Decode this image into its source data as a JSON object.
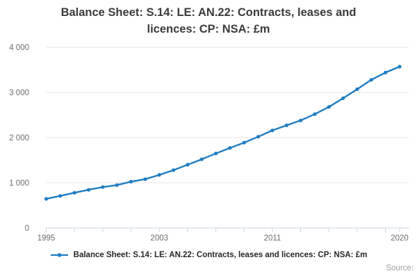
{
  "title": "Balance Sheet: S.14: LE: AN.22: Contracts, leases and licences: CP: NSA: £m",
  "legend": {
    "label": "Balance Sheet: S.14: LE: AN.22: Contracts, leases and licences: CP: NSA: £m",
    "marker_icon": "line-with-dot-marker"
  },
  "source_label": "Source:",
  "colors": {
    "line": "#1d7dc2",
    "grid": "#e6e6e6",
    "axis": "#c8d4e3",
    "axis_text": "#6b6b6b",
    "title_text": "#3b3b3b",
    "source_text": "#9c9c9c"
  },
  "chart_data": {
    "type": "line",
    "title": "Balance Sheet: S.14: LE: AN.22: Contracts, leases and licences: CP: NSA: £m",
    "xlabel": "",
    "ylabel": "",
    "x": [
      1995,
      1996,
      1997,
      1998,
      1999,
      2000,
      2001,
      2002,
      2003,
      2004,
      2005,
      2006,
      2007,
      2008,
      2009,
      2010,
      2011,
      2012,
      2013,
      2014,
      2015,
      2016,
      2017,
      2018,
      2019,
      2020
    ],
    "values": [
      645,
      710,
      780,
      845,
      905,
      950,
      1025,
      1080,
      1175,
      1280,
      1400,
      1520,
      1650,
      1770,
      1890,
      2020,
      2160,
      2270,
      2380,
      2520,
      2680,
      2870,
      3070,
      3280,
      3440,
      3570
    ],
    "series_name": "Balance Sheet: S.14: LE: AN.22: Contracts, leases and licences: CP: NSA: £m",
    "ylim": [
      0,
      4000
    ],
    "yticks": [
      {
        "v": 0,
        "label": "0"
      },
      {
        "v": 1000,
        "label": "1 000"
      },
      {
        "v": 2000,
        "label": "2 000"
      },
      {
        "v": 3000,
        "label": "3 000"
      },
      {
        "v": 4000,
        "label": "4 000"
      }
    ],
    "xtick_step": 2,
    "xtick_labels": [
      "1995",
      "2003",
      "2011",
      "2020"
    ],
    "xtick_label_years": [
      1995,
      2003,
      2011,
      2020
    ],
    "grid": true,
    "legend_position": "bottom",
    "marker": "dot"
  }
}
